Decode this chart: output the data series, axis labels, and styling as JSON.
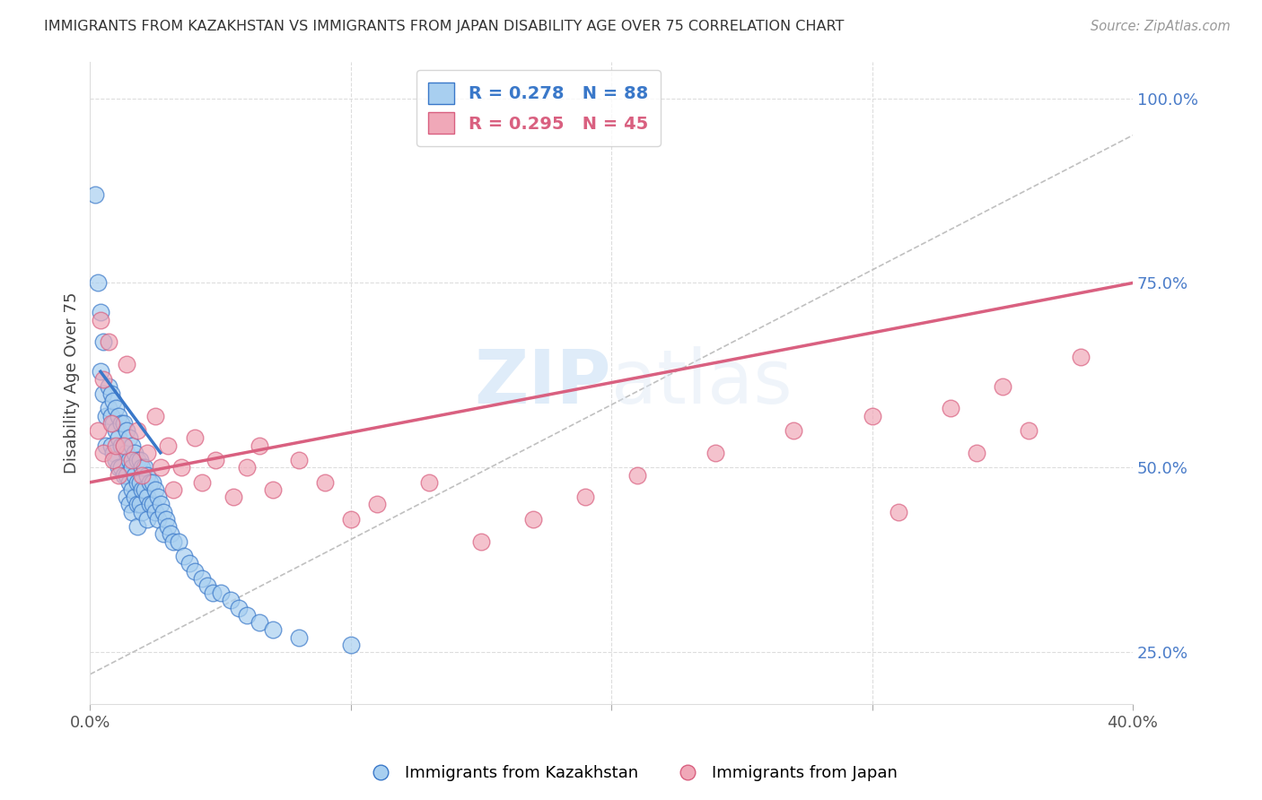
{
  "title": "IMMIGRANTS FROM KAZAKHSTAN VS IMMIGRANTS FROM JAPAN DISABILITY AGE OVER 75 CORRELATION CHART",
  "source": "Source: ZipAtlas.com",
  "ylabel": "Disability Age Over 75",
  "xlim": [
    0.0,
    0.4
  ],
  "ylim": [
    0.18,
    1.05
  ],
  "xticks": [
    0.0,
    0.1,
    0.2,
    0.3,
    0.4
  ],
  "xticklabels": [
    "0.0%",
    "",
    "",
    "",
    "40.0%"
  ],
  "ytick_right_values": [
    0.25,
    0.5,
    0.75,
    1.0
  ],
  "ytick_right_labels": [
    "25.0%",
    "50.0%",
    "75.0%",
    "100.0%"
  ],
  "legend_kaz": "R = 0.278   N = 88",
  "legend_jpn": "R = 0.295   N = 45",
  "legend_label_kaz": "Immigrants from Kazakhstan",
  "legend_label_jpn": "Immigrants from Japan",
  "color_kaz": "#a8cff0",
  "color_jpn": "#f0a8b8",
  "color_kaz_line": "#3a78c9",
  "color_jpn_line": "#d96080",
  "color_diag": "#c0c0c0",
  "watermark": "ZIPatlas",
  "kaz_x": [
    0.002,
    0.003,
    0.004,
    0.004,
    0.005,
    0.005,
    0.006,
    0.006,
    0.007,
    0.007,
    0.008,
    0.008,
    0.008,
    0.009,
    0.009,
    0.009,
    0.01,
    0.01,
    0.01,
    0.011,
    0.011,
    0.011,
    0.012,
    0.012,
    0.012,
    0.013,
    0.013,
    0.013,
    0.014,
    0.014,
    0.014,
    0.014,
    0.015,
    0.015,
    0.015,
    0.015,
    0.016,
    0.016,
    0.016,
    0.016,
    0.017,
    0.017,
    0.017,
    0.018,
    0.018,
    0.018,
    0.018,
    0.019,
    0.019,
    0.019,
    0.02,
    0.02,
    0.02,
    0.021,
    0.021,
    0.022,
    0.022,
    0.022,
    0.023,
    0.023,
    0.024,
    0.024,
    0.025,
    0.025,
    0.026,
    0.026,
    0.027,
    0.028,
    0.028,
    0.029,
    0.03,
    0.031,
    0.032,
    0.034,
    0.036,
    0.038,
    0.04,
    0.043,
    0.045,
    0.047,
    0.05,
    0.054,
    0.057,
    0.06,
    0.065,
    0.07,
    0.08,
    0.1
  ],
  "kaz_y": [
    0.87,
    0.75,
    0.71,
    0.63,
    0.67,
    0.6,
    0.57,
    0.53,
    0.61,
    0.58,
    0.6,
    0.57,
    0.53,
    0.59,
    0.56,
    0.52,
    0.58,
    0.55,
    0.51,
    0.57,
    0.54,
    0.5,
    0.56,
    0.53,
    0.5,
    0.56,
    0.53,
    0.49,
    0.55,
    0.52,
    0.49,
    0.46,
    0.54,
    0.51,
    0.48,
    0.45,
    0.53,
    0.5,
    0.47,
    0.44,
    0.52,
    0.49,
    0.46,
    0.51,
    0.48,
    0.45,
    0.42,
    0.51,
    0.48,
    0.45,
    0.5,
    0.47,
    0.44,
    0.5,
    0.47,
    0.49,
    0.46,
    0.43,
    0.48,
    0.45,
    0.48,
    0.45,
    0.47,
    0.44,
    0.46,
    0.43,
    0.45,
    0.44,
    0.41,
    0.43,
    0.42,
    0.41,
    0.4,
    0.4,
    0.38,
    0.37,
    0.36,
    0.35,
    0.34,
    0.33,
    0.33,
    0.32,
    0.31,
    0.3,
    0.29,
    0.28,
    0.27,
    0.26
  ],
  "jpn_x": [
    0.003,
    0.004,
    0.005,
    0.005,
    0.007,
    0.008,
    0.009,
    0.01,
    0.011,
    0.013,
    0.014,
    0.016,
    0.018,
    0.02,
    0.022,
    0.025,
    0.027,
    0.03,
    0.032,
    0.035,
    0.04,
    0.043,
    0.048,
    0.055,
    0.06,
    0.065,
    0.07,
    0.08,
    0.09,
    0.1,
    0.11,
    0.13,
    0.15,
    0.17,
    0.19,
    0.21,
    0.24,
    0.27,
    0.3,
    0.31,
    0.33,
    0.34,
    0.35,
    0.36,
    0.38
  ],
  "jpn_y": [
    0.55,
    0.7,
    0.52,
    0.62,
    0.67,
    0.56,
    0.51,
    0.53,
    0.49,
    0.53,
    0.64,
    0.51,
    0.55,
    0.49,
    0.52,
    0.57,
    0.5,
    0.53,
    0.47,
    0.5,
    0.54,
    0.48,
    0.51,
    0.46,
    0.5,
    0.53,
    0.47,
    0.51,
    0.48,
    0.43,
    0.45,
    0.48,
    0.4,
    0.43,
    0.46,
    0.49,
    0.52,
    0.55,
    0.57,
    0.44,
    0.58,
    0.52,
    0.61,
    0.55,
    0.65
  ],
  "kaz_trend_x": [
    0.004,
    0.027
  ],
  "kaz_trend_y": [
    0.63,
    0.52
  ],
  "jpn_trend_x": [
    0.0,
    0.4
  ],
  "jpn_trend_y": [
    0.48,
    0.75
  ]
}
